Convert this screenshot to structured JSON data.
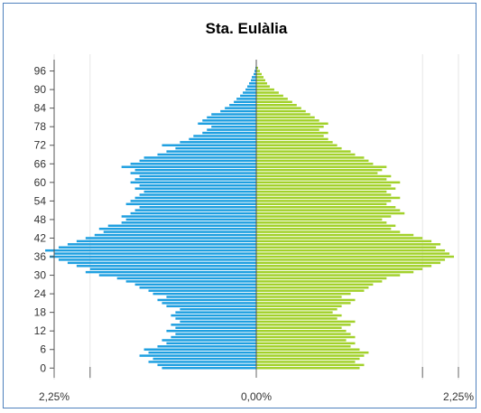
{
  "chart_data": {
    "type": "bar",
    "orientation": "horizontal",
    "layout": "population-pyramid",
    "title": "Sta. Eulàlia",
    "xlim": [
      -2.25,
      2.25
    ],
    "x_tick_labels": [
      {
        "value": -2.25,
        "label": "2,25%"
      },
      {
        "value": 0,
        "label": "0,00%"
      },
      {
        "value": 2.25,
        "label": "2,25%"
      }
    ],
    "y_ticks": [
      0,
      6,
      12,
      18,
      24,
      30,
      36,
      42,
      48,
      54,
      60,
      66,
      72,
      78,
      84,
      90,
      96
    ],
    "ylim": [
      -0.5,
      98.5
    ],
    "ages": [
      0,
      1,
      2,
      3,
      4,
      5,
      6,
      7,
      8,
      9,
      10,
      11,
      12,
      13,
      14,
      15,
      16,
      17,
      18,
      19,
      20,
      21,
      22,
      23,
      24,
      25,
      26,
      27,
      28,
      29,
      30,
      31,
      32,
      33,
      34,
      35,
      36,
      37,
      38,
      39,
      40,
      41,
      42,
      43,
      44,
      45,
      46,
      47,
      48,
      49,
      50,
      51,
      52,
      53,
      54,
      55,
      56,
      57,
      58,
      59,
      60,
      61,
      62,
      63,
      64,
      65,
      66,
      67,
      68,
      69,
      70,
      71,
      72,
      73,
      74,
      75,
      76,
      77,
      78,
      79,
      80,
      81,
      82,
      83,
      84,
      85,
      86,
      87,
      88,
      89,
      90,
      91,
      92,
      93,
      94,
      95,
      96,
      97
    ],
    "series": [
      {
        "color": "#1e9fe0",
        "side": "left",
        "values": [
          1.05,
          1.1,
          1.2,
          1.15,
          1.3,
          1.2,
          1.25,
          1.1,
          1.0,
          1.05,
          0.95,
          0.9,
          1.0,
          0.9,
          0.95,
          0.85,
          0.9,
          0.95,
          0.9,
          0.85,
          1.0,
          1.05,
          1.1,
          1.0,
          1.15,
          1.2,
          1.3,
          1.35,
          1.45,
          1.55,
          1.75,
          1.9,
          1.85,
          2.0,
          2.1,
          2.2,
          2.3,
          2.25,
          2.35,
          2.2,
          2.1,
          2.0,
          1.9,
          1.8,
          1.7,
          1.75,
          1.65,
          1.5,
          1.45,
          1.5,
          1.4,
          1.35,
          1.3,
          1.45,
          1.4,
          1.35,
          1.3,
          1.25,
          1.35,
          1.3,
          1.4,
          1.35,
          1.3,
          1.4,
          1.35,
          1.5,
          1.4,
          1.3,
          1.25,
          1.1,
          1.0,
          0.9,
          1.05,
          0.85,
          0.75,
          0.7,
          0.6,
          0.55,
          0.5,
          0.65,
          0.6,
          0.55,
          0.5,
          0.4,
          0.35,
          0.3,
          0.25,
          0.22,
          0.18,
          0.15,
          0.12,
          0.1,
          0.08,
          0.06,
          0.05,
          0.03,
          0.02,
          0.01
        ]
      },
      {
        "color": "#a2d12a",
        "side": "right",
        "values": [
          1.15,
          1.2,
          1.1,
          1.15,
          1.2,
          1.25,
          1.15,
          1.05,
          1.1,
          1.0,
          1.1,
          1.05,
          1.0,
          0.95,
          1.05,
          1.1,
          0.9,
          0.95,
          0.85,
          0.9,
          0.95,
          1.05,
          1.1,
          0.95,
          1.05,
          1.2,
          1.25,
          1.3,
          1.4,
          1.45,
          1.6,
          1.75,
          1.85,
          1.95,
          2.05,
          2.1,
          2.2,
          2.15,
          2.1,
          2.0,
          2.05,
          1.95,
          1.85,
          1.75,
          1.6,
          1.5,
          1.55,
          1.45,
          1.4,
          1.5,
          1.65,
          1.6,
          1.55,
          1.45,
          1.5,
          1.6,
          1.5,
          1.45,
          1.55,
          1.5,
          1.6,
          1.45,
          1.5,
          1.35,
          1.4,
          1.45,
          1.3,
          1.25,
          1.2,
          1.1,
          1.05,
          0.95,
          0.9,
          0.85,
          0.8,
          0.75,
          0.8,
          0.7,
          0.75,
          0.8,
          0.7,
          0.65,
          0.6,
          0.55,
          0.5,
          0.45,
          0.4,
          0.35,
          0.3,
          0.25,
          0.2,
          0.15,
          0.12,
          0.1,
          0.08,
          0.06,
          0.04,
          0.02
        ]
      }
    ]
  }
}
